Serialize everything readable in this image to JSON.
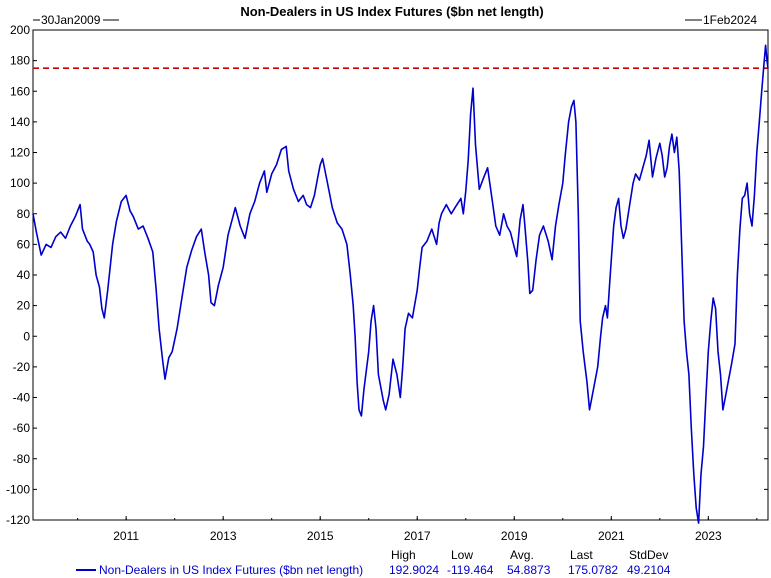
{
  "chart_data": {
    "type": "line",
    "title": "Non-Dealers in US Index Futures ($bn net length)",
    "start_label": "30Jan2009",
    "end_label": "1Feb2024",
    "ylim": [
      -120,
      200
    ],
    "y_ticks": [
      200,
      180,
      160,
      140,
      120,
      100,
      80,
      60,
      40,
      20,
      0,
      -20,
      -40,
      -60,
      -80,
      -100,
      -120
    ],
    "x_ticks": [
      "2011",
      "2013",
      "2015",
      "2017",
      "2019",
      "2021",
      "2023"
    ],
    "reference_line": {
      "value": 175.0782,
      "color": "#cc0000",
      "style": "dashed"
    },
    "series": [
      {
        "name": "Non-Dealers in US Index Futures ($bn net length)",
        "color": "#0000cc",
        "points": [
          [
            2009.08,
            80
          ],
          [
            2009.15,
            68
          ],
          [
            2009.25,
            53
          ],
          [
            2009.35,
            60
          ],
          [
            2009.45,
            58
          ],
          [
            2009.55,
            65
          ],
          [
            2009.65,
            68
          ],
          [
            2009.75,
            64
          ],
          [
            2009.85,
            72
          ],
          [
            2009.95,
            78
          ],
          [
            2010.05,
            86
          ],
          [
            2010.1,
            70
          ],
          [
            2010.2,
            62
          ],
          [
            2010.25,
            60
          ],
          [
            2010.32,
            55
          ],
          [
            2010.38,
            40
          ],
          [
            2010.45,
            32
          ],
          [
            2010.5,
            18
          ],
          [
            2010.55,
            12
          ],
          [
            2010.62,
            30
          ],
          [
            2010.72,
            60
          ],
          [
            2010.8,
            75
          ],
          [
            2010.9,
            88
          ],
          [
            2011.0,
            92
          ],
          [
            2011.08,
            82
          ],
          [
            2011.15,
            78
          ],
          [
            2011.25,
            70
          ],
          [
            2011.35,
            72
          ],
          [
            2011.45,
            64
          ],
          [
            2011.55,
            55
          ],
          [
            2011.62,
            30
          ],
          [
            2011.68,
            5
          ],
          [
            2011.75,
            -15
          ],
          [
            2011.8,
            -28
          ],
          [
            2011.88,
            -14
          ],
          [
            2011.95,
            -10
          ],
          [
            2012.05,
            5
          ],
          [
            2012.15,
            25
          ],
          [
            2012.25,
            45
          ],
          [
            2012.35,
            56
          ],
          [
            2012.45,
            65
          ],
          [
            2012.55,
            70
          ],
          [
            2012.62,
            55
          ],
          [
            2012.7,
            40
          ],
          [
            2012.75,
            22
          ],
          [
            2012.82,
            20
          ],
          [
            2012.9,
            33
          ],
          [
            2013.0,
            45
          ],
          [
            2013.1,
            66
          ],
          [
            2013.2,
            78
          ],
          [
            2013.25,
            84
          ],
          [
            2013.35,
            72
          ],
          [
            2013.45,
            64
          ],
          [
            2013.55,
            80
          ],
          [
            2013.65,
            88
          ],
          [
            2013.75,
            100
          ],
          [
            2013.85,
            108
          ],
          [
            2013.9,
            94
          ],
          [
            2014.0,
            106
          ],
          [
            2014.1,
            112
          ],
          [
            2014.2,
            122
          ],
          [
            2014.3,
            124
          ],
          [
            2014.35,
            108
          ],
          [
            2014.45,
            96
          ],
          [
            2014.55,
            88
          ],
          [
            2014.65,
            92
          ],
          [
            2014.72,
            86
          ],
          [
            2014.8,
            84
          ],
          [
            2014.88,
            92
          ],
          [
            2014.95,
            104
          ],
          [
            2015.0,
            112
          ],
          [
            2015.05,
            116
          ],
          [
            2015.15,
            100
          ],
          [
            2015.25,
            84
          ],
          [
            2015.35,
            74
          ],
          [
            2015.45,
            70
          ],
          [
            2015.55,
            60
          ],
          [
            2015.62,
            40
          ],
          [
            2015.68,
            20
          ],
          [
            2015.72,
            0
          ],
          [
            2015.76,
            -30
          ],
          [
            2015.8,
            -48
          ],
          [
            2015.85,
            -52
          ],
          [
            2015.9,
            -35
          ],
          [
            2016.0,
            -10
          ],
          [
            2016.05,
            10
          ],
          [
            2016.1,
            20
          ],
          [
            2016.15,
            5
          ],
          [
            2016.2,
            -25
          ],
          [
            2016.3,
            -42
          ],
          [
            2016.35,
            -48
          ],
          [
            2016.42,
            -38
          ],
          [
            2016.5,
            -15
          ],
          [
            2016.58,
            -25
          ],
          [
            2016.65,
            -40
          ],
          [
            2016.7,
            -20
          ],
          [
            2016.75,
            5
          ],
          [
            2016.82,
            15
          ],
          [
            2016.9,
            12
          ],
          [
            2017.0,
            30
          ],
          [
            2017.05,
            45
          ],
          [
            2017.1,
            58
          ],
          [
            2017.2,
            62
          ],
          [
            2017.3,
            70
          ],
          [
            2017.4,
            60
          ],
          [
            2017.45,
            74
          ],
          [
            2017.5,
            80
          ],
          [
            2017.6,
            86
          ],
          [
            2017.7,
            80
          ],
          [
            2017.8,
            85
          ],
          [
            2017.9,
            90
          ],
          [
            2017.95,
            80
          ],
          [
            2018.0,
            95
          ],
          [
            2018.05,
            115
          ],
          [
            2018.1,
            145
          ],
          [
            2018.15,
            162
          ],
          [
            2018.2,
            125
          ],
          [
            2018.28,
            96
          ],
          [
            2018.35,
            102
          ],
          [
            2018.45,
            110
          ],
          [
            2018.55,
            88
          ],
          [
            2018.62,
            72
          ],
          [
            2018.7,
            66
          ],
          [
            2018.78,
            80
          ],
          [
            2018.85,
            72
          ],
          [
            2018.92,
            68
          ],
          [
            2019.0,
            58
          ],
          [
            2019.05,
            52
          ],
          [
            2019.12,
            76
          ],
          [
            2019.18,
            86
          ],
          [
            2019.22,
            72
          ],
          [
            2019.28,
            48
          ],
          [
            2019.32,
            28
          ],
          [
            2019.38,
            30
          ],
          [
            2019.45,
            50
          ],
          [
            2019.52,
            66
          ],
          [
            2019.6,
            72
          ],
          [
            2019.7,
            62
          ],
          [
            2019.78,
            50
          ],
          [
            2019.85,
            72
          ],
          [
            2019.92,
            86
          ],
          [
            2020.0,
            100
          ],
          [
            2020.05,
            118
          ],
          [
            2020.12,
            140
          ],
          [
            2020.18,
            150
          ],
          [
            2020.23,
            154
          ],
          [
            2020.27,
            140
          ],
          [
            2020.32,
            80
          ],
          [
            2020.36,
            10
          ],
          [
            2020.42,
            -10
          ],
          [
            2020.5,
            -30
          ],
          [
            2020.55,
            -48
          ],
          [
            2020.6,
            -40
          ],
          [
            2020.66,
            -30
          ],
          [
            2020.72,
            -20
          ],
          [
            2020.78,
            0
          ],
          [
            2020.82,
            12
          ],
          [
            2020.88,
            20
          ],
          [
            2020.92,
            12
          ],
          [
            2020.96,
            32
          ],
          [
            2021.0,
            50
          ],
          [
            2021.05,
            72
          ],
          [
            2021.1,
            84
          ],
          [
            2021.15,
            90
          ],
          [
            2021.2,
            72
          ],
          [
            2021.25,
            64
          ],
          [
            2021.3,
            70
          ],
          [
            2021.38,
            86
          ],
          [
            2021.45,
            100
          ],
          [
            2021.5,
            106
          ],
          [
            2021.58,
            102
          ],
          [
            2021.65,
            110
          ],
          [
            2021.72,
            118
          ],
          [
            2021.78,
            128
          ],
          [
            2021.85,
            104
          ],
          [
            2021.92,
            116
          ],
          [
            2022.0,
            126
          ],
          [
            2022.05,
            118
          ],
          [
            2022.1,
            104
          ],
          [
            2022.15,
            110
          ],
          [
            2022.2,
            124
          ],
          [
            2022.25,
            132
          ],
          [
            2022.3,
            120
          ],
          [
            2022.35,
            130
          ],
          [
            2022.4,
            108
          ],
          [
            2022.45,
            60
          ],
          [
            2022.5,
            10
          ],
          [
            2022.55,
            -10
          ],
          [
            2022.6,
            -25
          ],
          [
            2022.65,
            -60
          ],
          [
            2022.7,
            -90
          ],
          [
            2022.75,
            -112
          ],
          [
            2022.8,
            -122
          ],
          [
            2022.85,
            -90
          ],
          [
            2022.9,
            -72
          ],
          [
            2022.95,
            -40
          ],
          [
            2023.0,
            -10
          ],
          [
            2023.05,
            10
          ],
          [
            2023.1,
            25
          ],
          [
            2023.15,
            18
          ],
          [
            2023.2,
            -10
          ],
          [
            2023.25,
            -25
          ],
          [
            2023.3,
            -48
          ],
          [
            2023.35,
            -40
          ],
          [
            2023.42,
            -28
          ],
          [
            2023.48,
            -18
          ],
          [
            2023.55,
            -5
          ],
          [
            2023.6,
            40
          ],
          [
            2023.65,
            70
          ],
          [
            2023.7,
            90
          ],
          [
            2023.75,
            92
          ],
          [
            2023.8,
            100
          ],
          [
            2023.85,
            80
          ],
          [
            2023.9,
            72
          ],
          [
            2023.95,
            92
          ],
          [
            2024.0,
            120
          ],
          [
            2024.05,
            140
          ],
          [
            2024.1,
            160
          ],
          [
            2024.14,
            175
          ],
          [
            2024.18,
            190
          ],
          [
            2024.21,
            180
          ],
          [
            2024.23,
            175
          ]
        ]
      }
    ],
    "legend": {
      "label": "Non-Dealers in US Index Futures ($bn net length)",
      "headers": [
        "High",
        "Low",
        "Avg.",
        "Last",
        "StdDev"
      ],
      "values": [
        "192.9024",
        "-119.464",
        "54.8873",
        "175.0782",
        "49.2104"
      ]
    }
  }
}
